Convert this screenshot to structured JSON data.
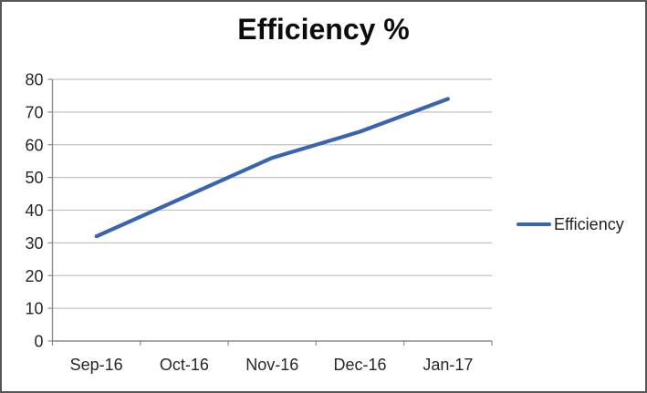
{
  "chart_data": {
    "type": "line",
    "title": "Efficiency %",
    "categories": [
      "Sep-16",
      "Oct-16",
      "Nov-16",
      "Dec-16",
      "Jan-17"
    ],
    "series": [
      {
        "name": "Efficiency",
        "values": [
          32,
          44,
          56,
          64,
          74
        ],
        "color": "#3b64b0"
      }
    ],
    "xlabel": "",
    "ylabel": "",
    "ylim": [
      0,
      80
    ],
    "yticks": [
      0,
      10,
      20,
      30,
      40,
      50,
      60,
      70,
      80
    ],
    "grid": "horizontal",
    "legend_position": "right-middle",
    "colors": {
      "line": "#3b64b0",
      "gridline": "#c2c2c2",
      "axis": "#8c8c8c",
      "tick_text": "#262626",
      "title_text": "#0d0d0d",
      "frame_border": "#565656",
      "background": "#ffffff"
    }
  }
}
